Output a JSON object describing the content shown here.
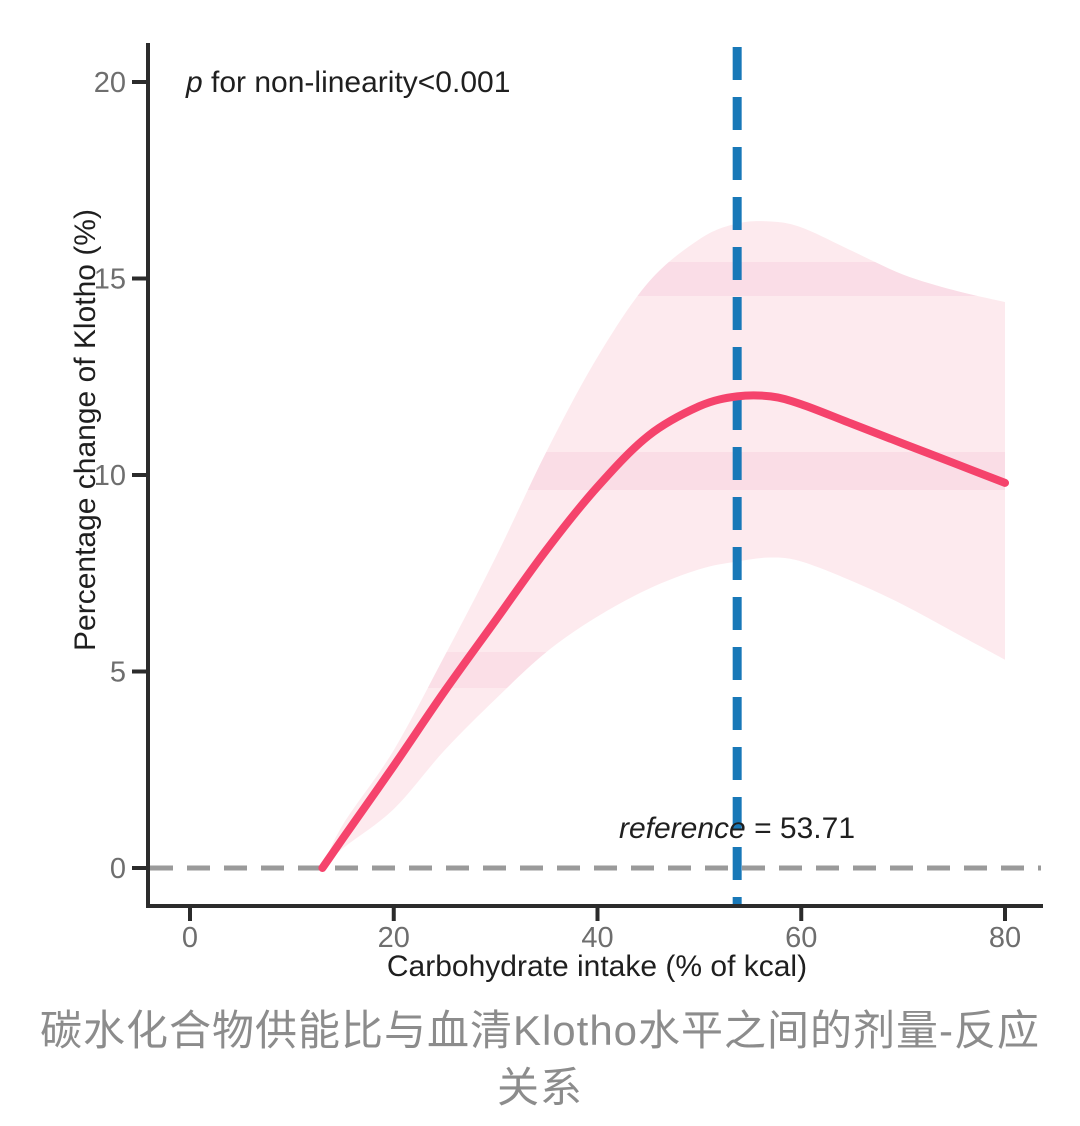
{
  "colors": {
    "curve": "#f5436c",
    "band": "#fdeaee",
    "band_stripe": "#f7cfdd",
    "reference_line": "#1878b8",
    "zero_line": "#9a9a9a",
    "axis": "#2b2b2b",
    "tick_label": "#6e6e6e",
    "text": "#1f1f1f",
    "caption": "#8c8c8c"
  },
  "annotations": {
    "p_italic": "p",
    "p_rest": " for non-linearity<0.001",
    "reference_italic": "reference",
    "reference_rest": " = 53.71"
  },
  "axes": {
    "y_label": "Percentage change of Klotho (%)",
    "x_label": "Carbohydrate intake (% of kcal)",
    "y_ticks": [
      0,
      5,
      10,
      15,
      20
    ],
    "x_ticks": [
      0,
      20,
      40,
      60,
      80
    ]
  },
  "caption": {
    "line1": "碳水化合物供能比与血清Klotho水平之间的剂量-反应",
    "line2": "关系"
  },
  "chart_data": {
    "type": "line",
    "title": "",
    "xlabel": "Carbohydrate intake (% of kcal)",
    "ylabel": "Percentage change of Klotho (%)",
    "xlim": [
      -4,
      84
    ],
    "ylim": [
      -2,
      21
    ],
    "grid": false,
    "legend": false,
    "x": [
      13,
      15,
      20,
      25,
      30,
      35,
      40,
      45,
      50,
      53.71,
      57,
      60,
      65,
      70,
      75,
      80
    ],
    "series": [
      {
        "name": "estimate",
        "values": [
          0,
          0.75,
          2.6,
          4.5,
          6.3,
          8.1,
          9.7,
          11.0,
          11.75,
          12.0,
          12.0,
          11.8,
          11.3,
          10.8,
          10.3,
          9.8
        ]
      },
      {
        "name": "ci_upper",
        "values": [
          0,
          1.1,
          3.0,
          5.4,
          7.9,
          10.6,
          13.0,
          14.9,
          16.0,
          16.4,
          16.45,
          16.3,
          15.7,
          15.1,
          14.7,
          14.4
        ]
      },
      {
        "name": "ci_lower",
        "values": [
          0,
          0.5,
          1.5,
          3.0,
          4.3,
          5.5,
          6.4,
          7.1,
          7.6,
          7.8,
          7.9,
          7.8,
          7.3,
          6.7,
          6.0,
          5.3
        ]
      }
    ],
    "reference_x": 53.71,
    "zero_reference_y": 0,
    "p_nonlinearity": "<0.001"
  }
}
